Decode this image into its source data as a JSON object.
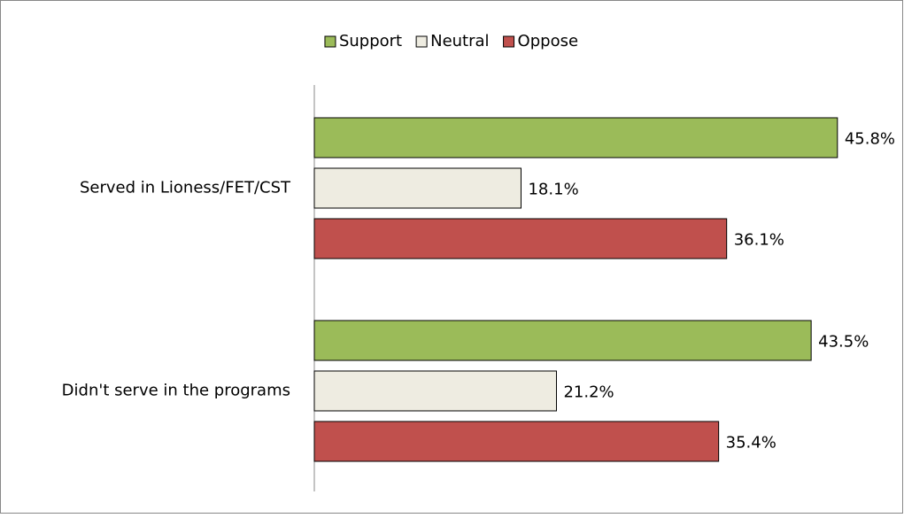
{
  "chart_data": {
    "type": "hbar",
    "categories": [
      "Served in Lioness/FET/CST",
      "Didn't serve in the programs"
    ],
    "series": [
      {
        "name": "Support",
        "color": "#9bbb59",
        "values": [
          45.8,
          43.5
        ],
        "value_labels": [
          "45.8%",
          "43.5%"
        ]
      },
      {
        "name": "Neutral",
        "color": "#eeece1",
        "values": [
          18.1,
          21.2
        ],
        "value_labels": [
          "18.1%",
          "21.2%"
        ]
      },
      {
        "name": "Oppose",
        "color": "#c0504d",
        "values": [
          36.1,
          35.4
        ],
        "value_labels": [
          "36.1%",
          "35.4%"
        ]
      }
    ],
    "legend": "top"
  }
}
